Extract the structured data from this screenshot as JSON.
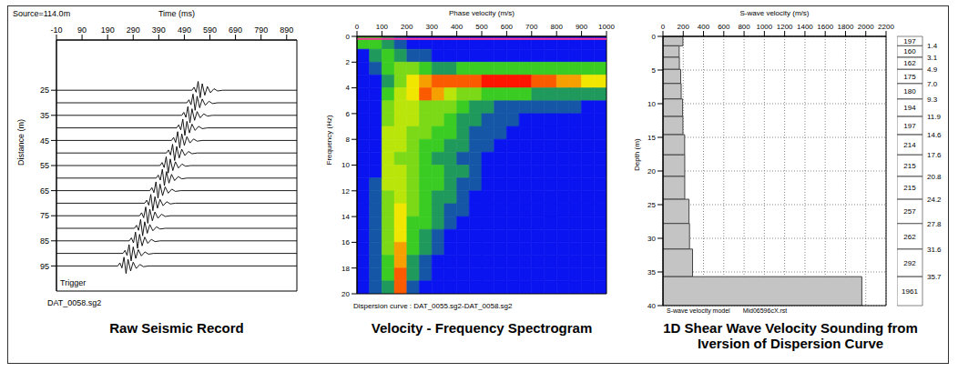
{
  "chart_data": [
    {
      "type": "wiggle",
      "title": "Raw Seismic Record",
      "subtitle": "Source=114.0m",
      "caption": "DAT_0058.sg2",
      "annotation": "Trigger",
      "x_label": "Time (ms)",
      "y_label": "Distance (m)",
      "xlim": [
        -10,
        930
      ],
      "xticks": [
        -10,
        90,
        190,
        290,
        390,
        490,
        590,
        690,
        790,
        890
      ],
      "ylim": [
        5,
        105
      ],
      "yticks": [
        25,
        35,
        45,
        55,
        65,
        75,
        85,
        95
      ],
      "color": "#000000",
      "wavelet": {
        "t": [
          0,
          8,
          16,
          24,
          32,
          40,
          50,
          60,
          72,
          86,
          100,
          120
        ],
        "amplitude": [
          0,
          -1.2,
          0.8,
          -3.5,
          3,
          -2.6,
          2,
          -1.5,
          1,
          -0.6,
          0.3,
          0
        ]
      },
      "traces": {
        "distance": [
          25,
          30,
          35,
          40,
          45,
          50,
          55,
          60,
          65,
          70,
          75,
          80,
          85,
          90,
          95
        ],
        "arrival": [
          520,
          500,
          480,
          460,
          440,
          420,
          395,
          380,
          355,
          335,
          315,
          295,
          275,
          250,
          230
        ]
      }
    },
    {
      "type": "heatmap",
      "title": "Velocity - Frequency Spectrogram",
      "caption": "Dispersion curve : DAT_0055.sg2-DAT_0058.sg2",
      "x_label": "Phase velocity (m/s)",
      "y_label": "Frequency (Hz)",
      "xlim": [
        0,
        1000
      ],
      "xticks": [
        0,
        100,
        200,
        300,
        400,
        500,
        600,
        700,
        800,
        900,
        1000
      ],
      "ylim": [
        0,
        20
      ],
      "yticks": [
        0,
        2,
        4,
        6,
        8,
        10,
        12,
        14,
        16,
        18,
        20
      ],
      "x_bins": [
        0,
        50,
        100,
        150,
        200,
        250,
        300,
        350,
        400,
        450,
        500,
        550,
        600,
        650,
        700,
        750,
        800,
        850,
        900,
        950,
        1000
      ],
      "y_bins": [
        0,
        1,
        2,
        3,
        4,
        5,
        6,
        7,
        8,
        9,
        10,
        11,
        12,
        13,
        14,
        15,
        16,
        17,
        18,
        19,
        20
      ],
      "zlim": [
        0,
        9
      ],
      "hline": {
        "value": 0.2,
        "color": "#ff3399"
      },
      "cells": [
        [
          3,
          3,
          2,
          1,
          0,
          0,
          0,
          0,
          0,
          0,
          0,
          0,
          0,
          0,
          0,
          0,
          0,
          0,
          0,
          0
        ],
        [
          0,
          2,
          3,
          2,
          1,
          1,
          0,
          0,
          0,
          0,
          0,
          0,
          0,
          0,
          0,
          0,
          0,
          0,
          0,
          0
        ],
        [
          0,
          1,
          3,
          4,
          4,
          3,
          2,
          2,
          3,
          3,
          3,
          3,
          3,
          3,
          3,
          3,
          3,
          3,
          3,
          3
        ],
        [
          0,
          0,
          2,
          4,
          6,
          7,
          8,
          8,
          8,
          8,
          9,
          9,
          9,
          9,
          8,
          8,
          7,
          7,
          6,
          6
        ],
        [
          0,
          0,
          3,
          5,
          6,
          8,
          7,
          5,
          4,
          4,
          3,
          3,
          3,
          3,
          2,
          2,
          2,
          2,
          2,
          2
        ],
        [
          0,
          0,
          4,
          5,
          5,
          4,
          4,
          4,
          3,
          2,
          2,
          1,
          1,
          1,
          1,
          1,
          1,
          1,
          0,
          0
        ],
        [
          0,
          0,
          4,
          5,
          5,
          4,
          4,
          3,
          2,
          2,
          1,
          1,
          1,
          0,
          0,
          0,
          0,
          0,
          0,
          0
        ],
        [
          0,
          0,
          5,
          5,
          4,
          4,
          3,
          3,
          2,
          1,
          1,
          1,
          0,
          0,
          0,
          0,
          0,
          0,
          0,
          0
        ],
        [
          0,
          0,
          5,
          5,
          4,
          3,
          3,
          2,
          2,
          1,
          1,
          0,
          0,
          0,
          0,
          0,
          0,
          0,
          0,
          0
        ],
        [
          0,
          0,
          5,
          4,
          4,
          3,
          2,
          2,
          1,
          1,
          0,
          0,
          0,
          0,
          0,
          0,
          0,
          0,
          0,
          0
        ],
        [
          0,
          0,
          5,
          5,
          4,
          3,
          3,
          2,
          2,
          1,
          0,
          0,
          0,
          0,
          0,
          0,
          0,
          0,
          0,
          0
        ],
        [
          0,
          1,
          5,
          5,
          4,
          3,
          3,
          2,
          1,
          1,
          0,
          0,
          0,
          0,
          0,
          0,
          0,
          0,
          0,
          0
        ],
        [
          0,
          1,
          4,
          5,
          4,
          3,
          2,
          2,
          1,
          0,
          0,
          0,
          0,
          0,
          0,
          0,
          0,
          0,
          0,
          0
        ],
        [
          0,
          1,
          4,
          6,
          4,
          3,
          2,
          1,
          1,
          0,
          0,
          0,
          0,
          0,
          0,
          0,
          0,
          0,
          0,
          0
        ],
        [
          0,
          1,
          4,
          6,
          3,
          3,
          2,
          1,
          0,
          0,
          0,
          0,
          0,
          0,
          0,
          0,
          0,
          0,
          0,
          0
        ],
        [
          0,
          1,
          4,
          6,
          3,
          2,
          1,
          0,
          0,
          0,
          0,
          0,
          0,
          0,
          0,
          0,
          0,
          0,
          0,
          0
        ],
        [
          0,
          1,
          4,
          7,
          3,
          2,
          1,
          0,
          0,
          0,
          0,
          0,
          0,
          0,
          0,
          0,
          0,
          0,
          0,
          0
        ],
        [
          0,
          1,
          3,
          7,
          2,
          1,
          0,
          0,
          0,
          0,
          0,
          0,
          0,
          0,
          0,
          0,
          0,
          0,
          0,
          0
        ],
        [
          0,
          1,
          3,
          8,
          2,
          1,
          0,
          0,
          0,
          0,
          0,
          0,
          0,
          0,
          0,
          0,
          0,
          0,
          0,
          0
        ],
        [
          0,
          1,
          2,
          8,
          1,
          0,
          0,
          0,
          0,
          0,
          0,
          0,
          0,
          0,
          0,
          0,
          0,
          0,
          0,
          0
        ]
      ]
    },
    {
      "type": "bar",
      "orientation": "horizontal",
      "title": "1D Shear Wave Velocity Sounding from Iversion of Dispersion Curve",
      "caption": "S-wave velocity model",
      "annotation": "Mid06596cX.rst",
      "x_label": "S-wave velocity (m/s)",
      "y_label": "Depth (m)",
      "xlim": [
        0,
        2200
      ],
      "xticks": [
        0,
        200,
        400,
        600,
        800,
        1000,
        1200,
        1400,
        1600,
        1800,
        2000,
        2200
      ],
      "ylim": [
        0,
        40
      ],
      "yticks": [
        0,
        5,
        10,
        15,
        20,
        25,
        30,
        35,
        40
      ],
      "grid": true,
      "data_labels": true,
      "color": "#c4c4c4",
      "values": [
        197,
        160,
        162,
        175,
        180,
        194,
        197,
        214,
        215,
        215,
        257,
        262,
        292,
        1961
      ],
      "bins": [
        0,
        1.4,
        3.1,
        4.9,
        7.0,
        9.3,
        11.9,
        14.6,
        17.6,
        20.8,
        24.2,
        27.8,
        31.6,
        35.7,
        40
      ],
      "bin_labels": [
        null,
        "1.4",
        "3.1",
        "4.9",
        "7.0",
        "9.3",
        "11.9",
        "14.6",
        "17.6",
        "20.8",
        "24.2",
        "27.8",
        "31.6",
        "35.7",
        null
      ]
    }
  ]
}
